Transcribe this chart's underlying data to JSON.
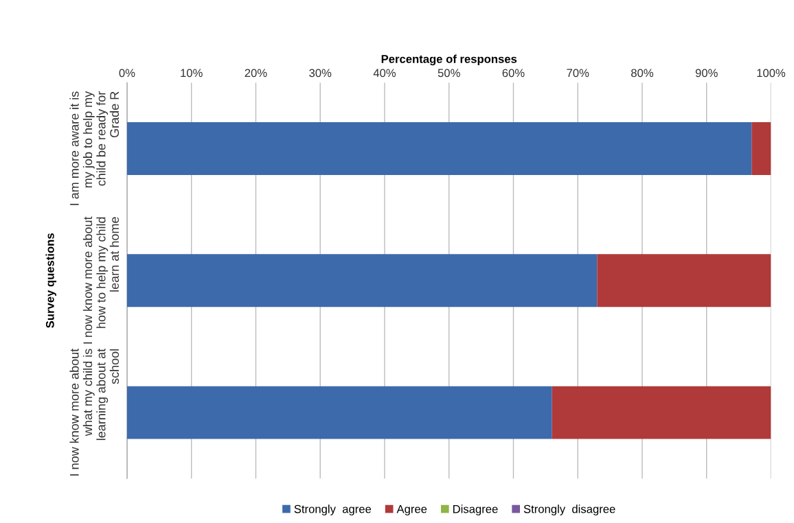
{
  "chart_data": {
    "type": "bar",
    "orientation": "horizontal",
    "stacked": true,
    "xlabel": "Percentage of responses",
    "ylabel": "Survey questions",
    "categories": [
      "I am more aware it is my job to help my child be ready for Grade R",
      "I now know more about how to help my child learn at home",
      "I now know more about what my child is learning about at school"
    ],
    "series": [
      {
        "name": "Strongly  agree",
        "color": "#3d6aab",
        "values": [
          97,
          73,
          66
        ]
      },
      {
        "name": "Agree",
        "color": "#b03a3a",
        "values": [
          3,
          27,
          34
        ]
      },
      {
        "name": "Disagree",
        "color": "#8db548",
        "values": [
          0,
          0,
          0
        ]
      },
      {
        "name": "Strongly  disagree",
        "color": "#7a58a0",
        "values": [
          0,
          0,
          0
        ]
      }
    ],
    "xlim": [
      0,
      100
    ],
    "xticks": [
      {
        "value": 0,
        "label": "0%"
      },
      {
        "value": 10,
        "label": "10%"
      },
      {
        "value": 20,
        "label": "20%"
      },
      {
        "value": 30,
        "label": "30%"
      },
      {
        "value": 40,
        "label": "40%"
      },
      {
        "value": 50,
        "label": "50%"
      },
      {
        "value": 60,
        "label": "60%"
      },
      {
        "value": 70,
        "label": "70%"
      },
      {
        "value": 80,
        "label": "80%"
      },
      {
        "value": 90,
        "label": "90%"
      },
      {
        "value": 100,
        "label": "100%"
      }
    ],
    "grid": "x",
    "legend": "bottom"
  }
}
